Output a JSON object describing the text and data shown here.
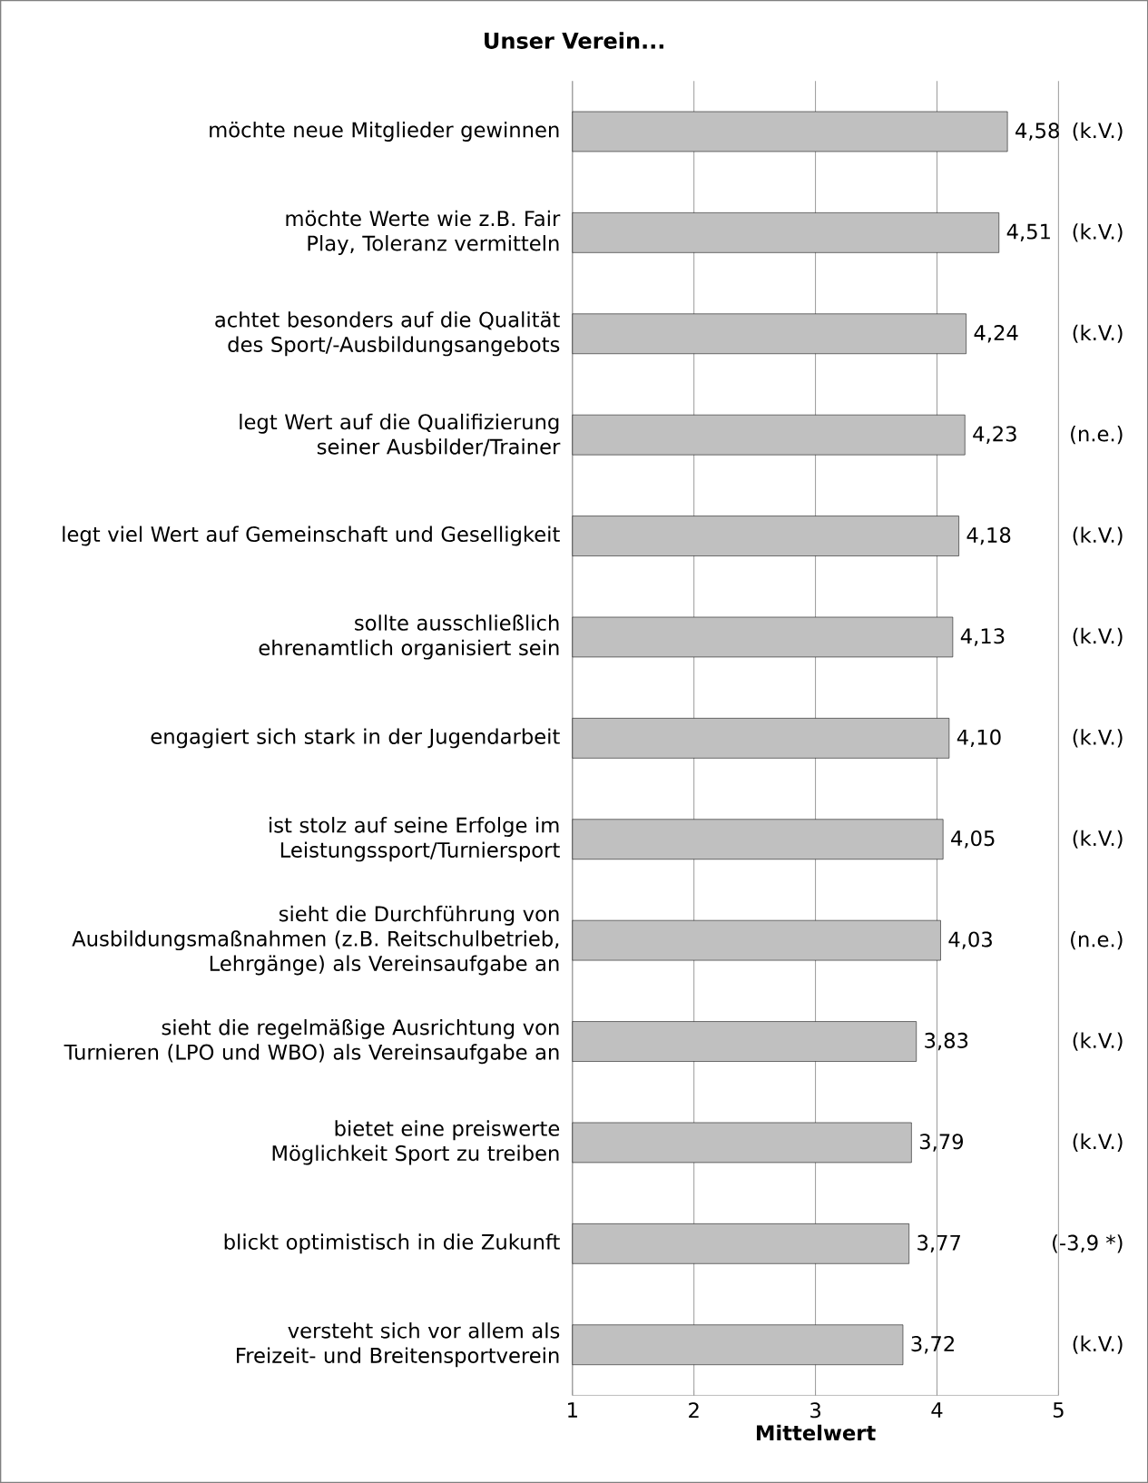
{
  "chart_data": {
    "type": "bar",
    "orientation": "horizontal",
    "title": "Unser Verein...",
    "xlabel": "Mittelwert",
    "categories": [
      "möchte neue Mitglieder gewinnen",
      "möchte Werte wie z.B. Fair Play, Toleranz vermitteln",
      "achtet besonders auf die Qualität des Sport/-Ausbildungsangebots",
      "legt Wert auf die Qualifizierung seiner Ausbilder/Trainer",
      "legt viel Wert auf Gemeinschaft und Geselligkeit",
      "sollte ausschließlich ehrenamtlich organisiert sein",
      "engagiert sich stark in der Jugendarbeit",
      "ist stolz auf seine Erfolge im Leistungssport/Turniersport",
      "sieht die Durchführung von Ausbildungsmaßnahmen (z.B. Reitschulbetrieb, Lehrgänge) als Vereinsaufgabe an",
      "sieht die regelmäßige Ausrichtung von Turnieren (LPO und WBO) als Vereinsaufgabe an",
      "bietet eine preiswerte Möglichkeit Sport zu treiben",
      "blickt optimistisch in die Zukunft",
      "versteht sich vor allem als Freizeit- und Breitensportverein"
    ],
    "values": [
      4.58,
      4.51,
      4.24,
      4.23,
      4.18,
      4.13,
      4.1,
      4.05,
      4.03,
      3.83,
      3.79,
      3.77,
      3.72
    ],
    "value_labels": [
      "4,58",
      "4,51",
      "4,24",
      "4,23",
      "4,18",
      "4,13",
      "4,10",
      "4,05",
      "4,03",
      "3,83",
      "3,79",
      "3,77",
      "3,72"
    ],
    "annotations": [
      "(k.V.)",
      "(k.V.)",
      "(k.V.)",
      "(n.e.)",
      "(k.V.)",
      "(k.V.)",
      "(k.V.)",
      "(k.V.)",
      "(n.e.)",
      "(k.V.)",
      "(k.V.)",
      "(-3,9 *)",
      "(k.V.)"
    ],
    "color": "#c0c0c0",
    "xlim": [
      1,
      5
    ],
    "xticks": [
      1,
      2,
      3,
      4,
      5
    ],
    "grid": "x"
  }
}
